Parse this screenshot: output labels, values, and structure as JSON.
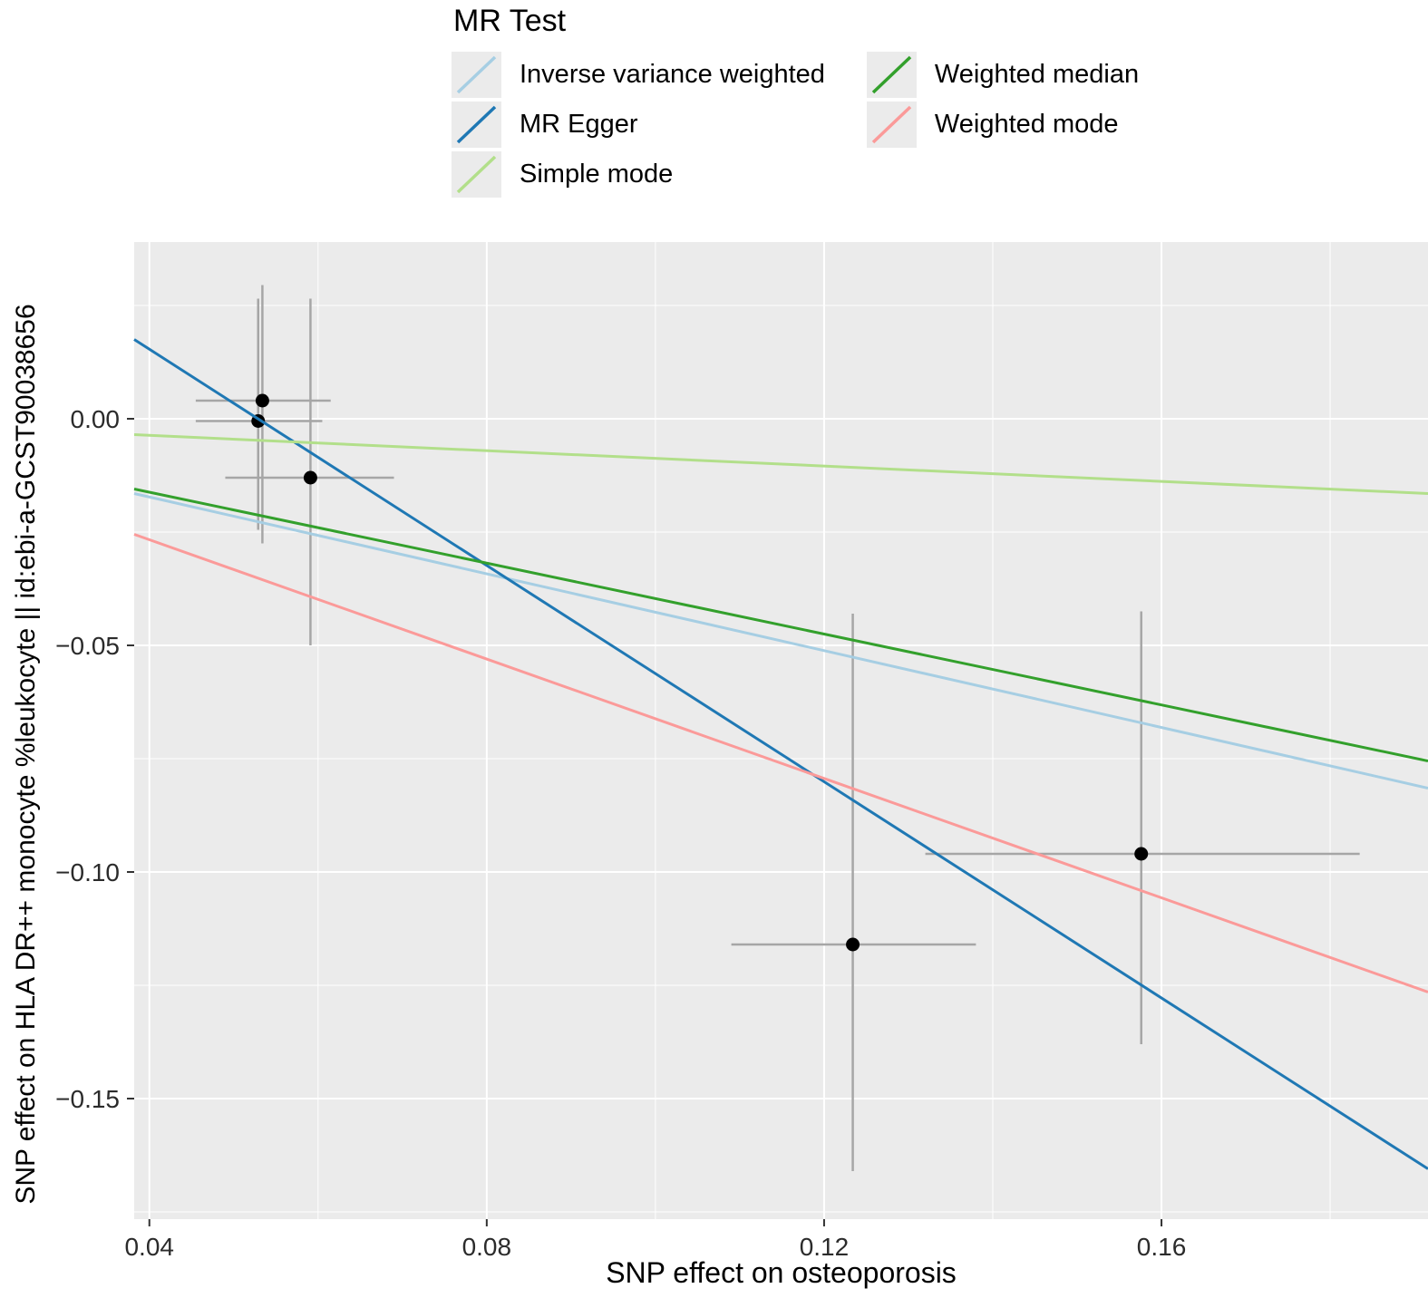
{
  "legend": {
    "title": "MR Test",
    "key_background": "#ebebeb"
  },
  "chart_data": {
    "type": "scatter",
    "title": "",
    "xlabel": "SNP effect on osteoporosis",
    "ylabel": "SNP effect on HLA DR++ monocyte %leukocyte || id:ebi-a-GCST90038656",
    "legend_title": "MR Test",
    "legend_position": "top",
    "grid": true,
    "panel_background": "#ebebeb",
    "gridline_color": "#ffffff",
    "errorbar_color": "#a6a6a6",
    "point_color": "#000000",
    "xlim": [
      0.0382,
      0.1916
    ],
    "ylim": [
      -0.1766,
      0.039
    ],
    "x_ticks": [
      0.04,
      0.08,
      0.12,
      0.16
    ],
    "x_tick_labels": [
      "0.04",
      "0.08",
      "0.12",
      "0.16"
    ],
    "x_minor_ticks": [
      0.06,
      0.1,
      0.14,
      0.18
    ],
    "y_ticks": [
      0.0,
      -0.05,
      -0.1,
      -0.15
    ],
    "y_tick_labels": [
      "0.00",
      "−0.05",
      "−0.10",
      "−0.15"
    ],
    "y_minor_ticks": [
      0.025,
      -0.025,
      -0.075,
      -0.125,
      -0.175
    ],
    "points": [
      {
        "x": 0.0534,
        "y": 0.004,
        "xmin": 0.0455,
        "xmax": 0.0615,
        "ymin": -0.0275,
        "ymax": 0.0295
      },
      {
        "x": 0.0529,
        "y": -0.0005,
        "xmin": 0.0455,
        "xmax": 0.0605,
        "ymin": -0.0245,
        "ymax": 0.0265
      },
      {
        "x": 0.0591,
        "y": -0.013,
        "xmin": 0.049,
        "xmax": 0.069,
        "ymin": -0.05,
        "ymax": 0.0265
      },
      {
        "x": 0.1234,
        "y": -0.116,
        "xmin": 0.109,
        "xmax": 0.138,
        "ymin": -0.166,
        "ymax": -0.043
      },
      {
        "x": 0.1576,
        "y": -0.096,
        "xmin": 0.132,
        "xmax": 0.1835,
        "ymin": -0.138,
        "ymax": -0.0425
      }
    ],
    "lines": [
      {
        "name": "Inverse variance weighted",
        "color": "#a6cee3",
        "x0": 0.0382,
        "y0": -0.0165,
        "x1": 0.1916,
        "y1": -0.0815
      },
      {
        "name": "MR Egger",
        "color": "#1f78b4",
        "x0": 0.0382,
        "y0": 0.0175,
        "x1": 0.1916,
        "y1": -0.1655
      },
      {
        "name": "Simple mode",
        "color": "#b2df8a",
        "x0": 0.0382,
        "y0": -0.0035,
        "x1": 0.1916,
        "y1": -0.0165
      },
      {
        "name": "Weighted median",
        "color": "#33a02c",
        "x0": 0.0382,
        "y0": -0.0155,
        "x1": 0.1916,
        "y1": -0.0755
      },
      {
        "name": "Weighted mode",
        "color": "#fb9a99",
        "x0": 0.0382,
        "y0": -0.0255,
        "x1": 0.1916,
        "y1": -0.1265
      }
    ]
  }
}
